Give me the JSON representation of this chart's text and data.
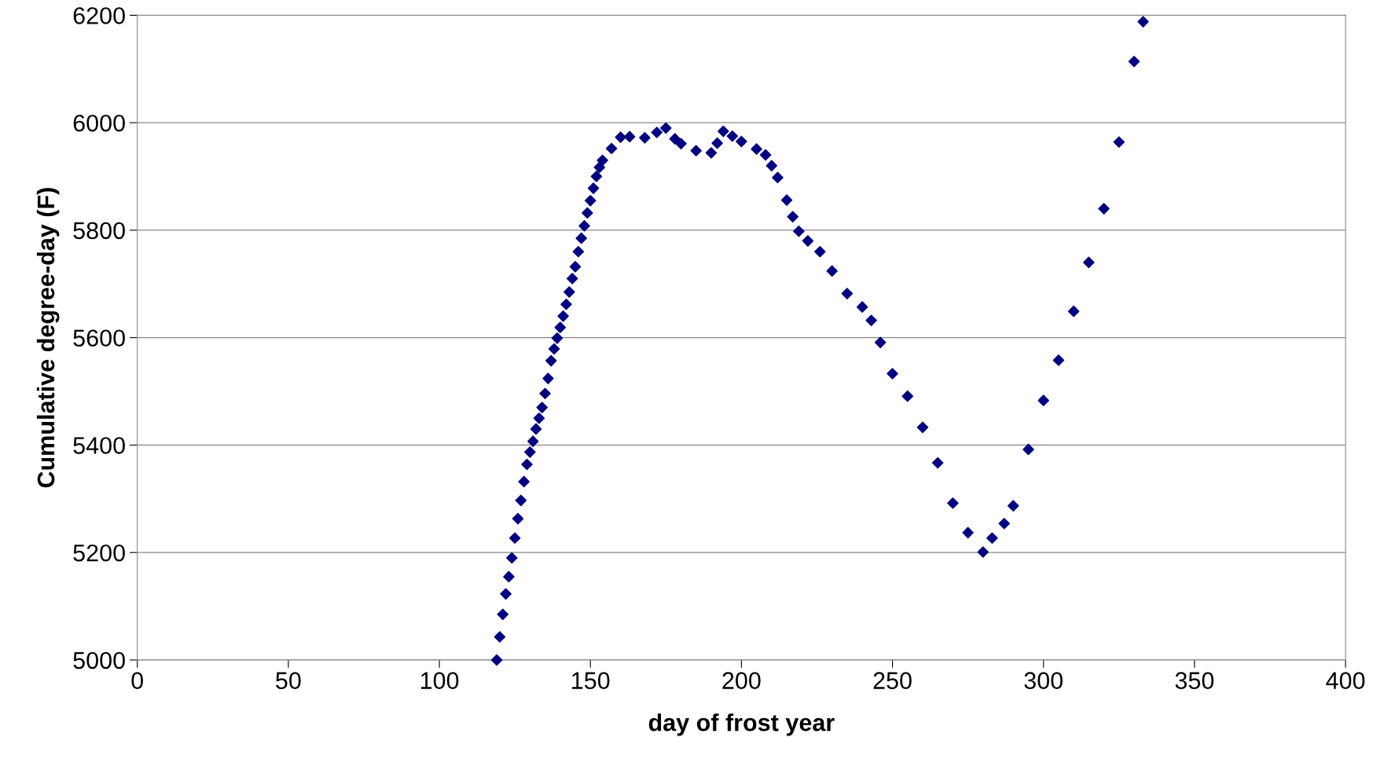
{
  "chart_data": {
    "type": "scatter",
    "xlabel": "day of frost year",
    "ylabel": "Cumulative degree-day (F)",
    "series": [
      {
        "color": "#000080",
        "x": [
          119,
          120,
          121,
          122,
          123,
          124,
          125,
          126,
          127,
          128,
          129,
          130,
          131,
          132,
          133,
          134,
          135,
          136,
          137,
          138,
          139,
          140,
          141,
          142,
          143,
          144,
          145,
          146,
          147,
          148,
          149,
          150,
          151,
          152,
          153,
          154,
          157,
          160,
          163,
          168,
          172,
          175,
          178,
          180,
          185,
          190,
          192,
          194,
          197,
          200,
          205,
          208,
          210,
          212,
          215,
          217,
          219,
          222,
          226,
          230,
          235,
          240,
          243,
          246,
          250,
          255,
          260,
          265,
          270,
          275,
          280,
          283,
          287,
          290,
          295,
          300,
          305,
          310,
          315,
          320,
          325,
          330,
          333
        ],
        "values": [
          5000,
          5043,
          5085,
          5123,
          5155,
          5190,
          5227,
          5263,
          5297,
          5332,
          5364,
          5387,
          5407,
          5430,
          5450,
          5470,
          5496,
          5524,
          5557,
          5579,
          5599,
          5619,
          5640,
          5662,
          5685,
          5710,
          5732,
          5760,
          5785,
          5808,
          5832,
          5855,
          5878,
          5900,
          5917,
          5930,
          5952,
          5973,
          5974,
          5972,
          5982,
          5990,
          5970,
          5961,
          5948,
          5944,
          5962,
          5984,
          5975,
          5965,
          5951,
          5940,
          5920,
          5898,
          5856,
          5825,
          5798,
          5780,
          5760,
          5724,
          5682,
          5657,
          5632,
          5591,
          5533,
          5491,
          5433,
          5367,
          5292,
          5237,
          5201,
          5227,
          5254,
          5287,
          5392,
          5483,
          5558,
          5649,
          5740,
          5840,
          5964,
          6114,
          6188
        ]
      }
    ],
    "xlim": [
      0,
      400
    ],
    "xticks": [
      0,
      50,
      100,
      150,
      200,
      250,
      300,
      350,
      400
    ],
    "ylim": [
      5000,
      6200
    ],
    "yticks": [
      5000,
      5200,
      5400,
      5600,
      5800,
      6000,
      6200
    ],
    "grid": "y",
    "marker": "diamond"
  }
}
